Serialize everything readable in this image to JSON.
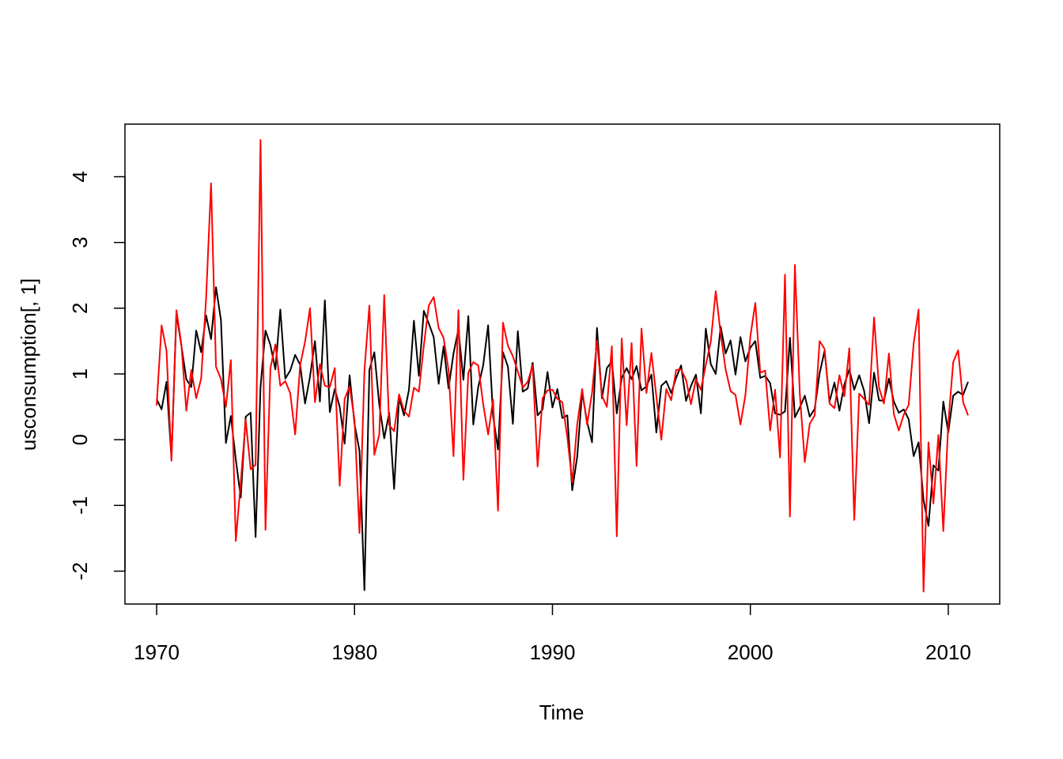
{
  "chart_data": {
    "type": "line",
    "xlabel": "Time",
    "ylabel": "usconsumption[, 1]",
    "xlim": [
      1968.4,
      1972.6
    ],
    "ylim": [
      -2.5,
      4.8
    ],
    "x_ticks": [
      1970,
      1980,
      1990,
      2000,
      2010
    ],
    "y_ticks": [
      -2,
      -1,
      0,
      1,
      2,
      3,
      4
    ],
    "x_tick_labels": [
      "1970",
      "1980",
      "1990",
      "2000",
      "2010"
    ],
    "y_tick_labels": [
      "-2",
      "-1",
      "0",
      "1",
      "2",
      "3",
      "4"
    ],
    "x_start": 1970.0,
    "frequency": 4,
    "grid": false,
    "series": [
      {
        "color": "#000000",
        "values": [
          0.62,
          0.46,
          0.88,
          -0.29,
          1.92,
          1.43,
          0.92,
          0.8,
          1.66,
          1.33,
          1.89,
          1.53,
          2.32,
          1.82,
          -0.05,
          0.36,
          -0.3,
          -0.88,
          0.35,
          0.41,
          -1.48,
          0.8,
          1.66,
          1.44,
          1.07,
          1.98,
          0.93,
          1.05,
          1.29,
          1.14,
          0.55,
          0.96,
          1.5,
          0.58,
          2.12,
          0.42,
          0.77,
          0.5,
          -0.06,
          0.98,
          0.24,
          -0.17,
          -2.29,
          1.06,
          1.33,
          0.53,
          0.02,
          0.41,
          -0.75,
          0.64,
          0.37,
          0.76,
          1.81,
          0.97,
          1.96,
          1.77,
          1.56,
          0.85,
          1.42,
          0.78,
          1.31,
          1.68,
          0.91,
          1.88,
          0.23,
          0.8,
          1.13,
          1.74,
          0.36,
          -0.15,
          1.33,
          1.11,
          0.24,
          1.65,
          0.73,
          0.78,
          1.17,
          0.37,
          0.46,
          1.03,
          0.49,
          0.77,
          0.33,
          0.37,
          -0.77,
          -0.26,
          0.72,
          0.27,
          -0.04,
          1.7,
          0.63,
          1.09,
          1.19,
          0.4,
          0.94,
          1.09,
          0.92,
          1.12,
          0.75,
          0.81,
          0.99,
          0.11,
          0.82,
          0.89,
          0.71,
          0.94,
          1.13,
          0.59,
          0.82,
          0.99,
          0.4,
          1.69,
          1.15,
          1.0,
          1.72,
          1.31,
          1.51,
          0.99,
          1.56,
          1.19,
          1.4,
          1.5,
          0.94,
          0.97,
          0.86,
          0.4,
          0.38,
          0.43,
          1.55,
          0.34,
          0.49,
          0.67,
          0.35,
          0.47,
          1.01,
          1.35,
          0.58,
          0.87,
          0.44,
          0.84,
          1.07,
          0.76,
          0.98,
          0.74,
          0.25,
          1.02,
          0.6,
          0.59,
          0.93,
          0.58,
          0.41,
          0.46,
          0.31,
          -0.25,
          -0.04,
          -0.92,
          -1.31,
          -0.39,
          -0.47,
          0.58,
          0.11,
          0.67,
          0.73,
          0.68,
          0.88
        ]
      },
      {
        "color": "#ff0000",
        "values": [
          0.52,
          1.74,
          1.35,
          -0.32,
          1.97,
          1.45,
          0.44,
          1.06,
          0.63,
          0.93,
          2.15,
          3.9,
          1.11,
          0.92,
          0.5,
          1.21,
          -1.54,
          -0.65,
          0.3,
          -0.45,
          -0.38,
          4.56,
          -1.37,
          1.09,
          1.45,
          0.82,
          0.89,
          0.71,
          0.08,
          1.13,
          1.49,
          2.0,
          0.57,
          1.15,
          0.82,
          0.8,
          1.09,
          -0.7,
          0.62,
          0.81,
          0.3,
          -1.42,
          1.05,
          2.04,
          -0.23,
          0.08,
          2.2,
          0.22,
          0.13,
          0.69,
          0.44,
          0.35,
          0.79,
          0.73,
          1.43,
          2.04,
          2.17,
          1.7,
          1.55,
          1.06,
          -0.25,
          1.97,
          -0.61,
          1.02,
          1.18,
          1.13,
          0.54,
          0.08,
          0.61,
          -1.08,
          1.78,
          1.43,
          1.27,
          1.04,
          0.79,
          0.88,
          1.13,
          -0.41,
          0.63,
          0.75,
          0.76,
          0.62,
          0.57,
          0.04,
          -0.65,
          0.23,
          0.77,
          0.23,
          0.71,
          1.51,
          0.67,
          0.5,
          1.42,
          -1.47,
          1.54,
          0.22,
          1.47,
          -0.4,
          1.69,
          0.71,
          1.32,
          0.66,
          0.0,
          0.77,
          0.6,
          1.06,
          1.07,
          0.91,
          0.54,
          0.92,
          0.76,
          1.14,
          1.49,
          2.26,
          1.61,
          1.07,
          0.74,
          0.68,
          0.23,
          0.68,
          1.57,
          2.08,
          1.02,
          1.05,
          0.14,
          0.76,
          -0.27,
          2.51,
          -1.17,
          2.66,
          0.69,
          -0.34,
          0.24,
          0.37,
          1.5,
          1.38,
          0.55,
          0.48,
          0.98,
          0.66,
          1.39,
          -1.22,
          0.7,
          0.62,
          0.53,
          1.86,
          0.79,
          0.55,
          1.31,
          0.39,
          0.14,
          0.38,
          0.53,
          1.46,
          1.98,
          -2.31,
          -0.04,
          -0.97,
          0.07,
          -1.39,
          0.25,
          1.18,
          1.36,
          0.57,
          0.37
        ]
      }
    ]
  }
}
